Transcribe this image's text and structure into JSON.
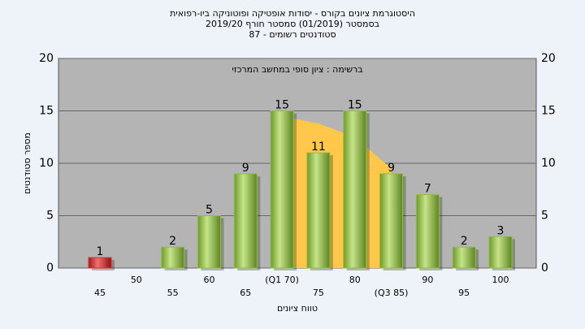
{
  "chart_data": {
    "type": "bar",
    "title": [
      "היסטוגרמת ציונים בקורס - יסודות אופטיקה ופוטוניקה ביו-רפואית",
      "בסמסטר  (01/2019)  סמסטר חורף 2019/20",
      "סטודנטים רשומים - 87"
    ],
    "annotation": "ברשימה : ציון סופי במחשב המרכזי",
    "x_label": "טווח ציונים",
    "y_label": "מספר סטודנטים",
    "categories": [
      "45",
      "50",
      "55",
      "60",
      "65",
      "(Q1 70)",
      "75",
      "80",
      "(Q3 85)",
      "90",
      "95",
      "100"
    ],
    "values": [
      1,
      0,
      2,
      5,
      9,
      15,
      11,
      15,
      9,
      7,
      2,
      3
    ],
    "colors": [
      "#d93030",
      "#8fbf3f",
      "#8fbf3f",
      "#8fbf3f",
      "#8fbf3f",
      "#8fbf3f",
      "#8fbf3f",
      "#8fbf3f",
      "#8fbf3f",
      "#8fbf3f",
      "#8fbf3f",
      "#8fbf3f"
    ],
    "iqr_area": {
      "color": "#ffc84a",
      "x": [
        70,
        75,
        80,
        85
      ],
      "values": [
        14.5,
        13.8,
        12.5,
        9.5
      ]
    },
    "ylim": [
      0,
      20
    ],
    "yticks": [
      0,
      5,
      10,
      15,
      20
    ],
    "y2lim": [
      0,
      20
    ],
    "y2ticks": [
      0,
      5,
      10,
      15,
      20
    ],
    "grid": true
  }
}
